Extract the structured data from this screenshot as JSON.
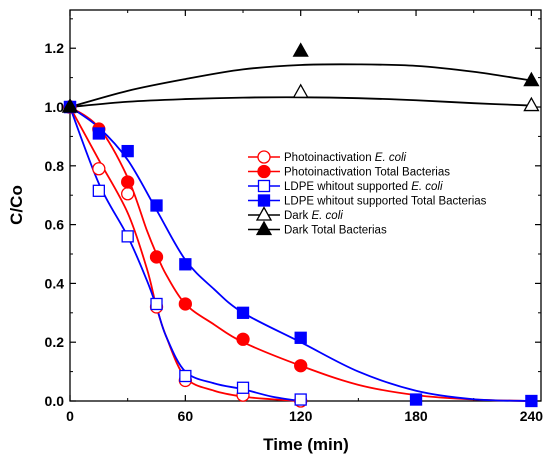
{
  "chart_data": {
    "type": "scatter",
    "xlabel": "Time (min)",
    "ylabel": "C/Co",
    "xlim": [
      0,
      245
    ],
    "ylim": [
      0,
      1.33
    ],
    "x_ticks": [
      0,
      60,
      120,
      180,
      240
    ],
    "y_ticks": [
      0.0,
      0.2,
      0.4,
      0.6,
      0.8,
      1.0,
      1.2
    ],
    "x_tick_labels": [
      "0",
      "60",
      "120",
      "180",
      "240"
    ],
    "y_tick_labels": [
      "0.0",
      "0.2",
      "0.4",
      "0.6",
      "0.8",
      "1.0",
      "1.2"
    ],
    "grid": false,
    "legend_position": "center-right",
    "colors": {
      "red": "#ff0000",
      "blue": "#0000ff",
      "black": "#000000"
    },
    "series": [
      {
        "name": "Photoinactivation E. coli",
        "legend_parts": [
          {
            "text": "Photoinactivation ",
            "italic": false
          },
          {
            "text": "E. coli",
            "italic": true
          }
        ],
        "color": "#ff0000",
        "marker": "circle",
        "filled": false,
        "x": [
          0,
          15,
          30,
          45,
          60,
          90,
          120
        ],
        "y": [
          1.0,
          0.79,
          0.705,
          0.32,
          0.07,
          0.02,
          0.0
        ]
      },
      {
        "name": "Photoinactivation Total Bacterias",
        "legend_parts": [
          {
            "text": "Photoinactivation  Total Bacterias",
            "italic": false
          }
        ],
        "color": "#ff0000",
        "marker": "circle",
        "filled": true,
        "x": [
          0,
          15,
          30,
          45,
          60,
          90,
          120
        ],
        "y": [
          1.0,
          0.925,
          0.745,
          0.49,
          0.33,
          0.21,
          0.12
        ]
      },
      {
        "name": "LDPE whitout supported E. coli",
        "legend_parts": [
          {
            "text": "LDPE whitout supported ",
            "italic": false
          },
          {
            "text": "E. coli",
            "italic": true
          }
        ],
        "color": "#0000ff",
        "marker": "square",
        "filled": false,
        "x": [
          0,
          15,
          30,
          45,
          60,
          90,
          120
        ],
        "y": [
          1.0,
          0.715,
          0.56,
          0.33,
          0.085,
          0.045,
          0.005
        ]
      },
      {
        "name": "LDPE whitout supported Total Bacterias",
        "legend_parts": [
          {
            "text": "LDPE whitout supported Total Bacterias",
            "italic": false
          }
        ],
        "color": "#0000ff",
        "marker": "square",
        "filled": true,
        "x": [
          0,
          15,
          30,
          45,
          60,
          90,
          120,
          180,
          240
        ],
        "y": [
          1.0,
          0.91,
          0.85,
          0.665,
          0.465,
          0.3,
          0.215,
          0.005,
          0.0
        ]
      },
      {
        "name": "Dark E. coli",
        "legend_parts": [
          {
            "text": "Dark ",
            "italic": false
          },
          {
            "text": "E. coli",
            "italic": true
          }
        ],
        "color": "#000000",
        "marker": "triangle",
        "filled": false,
        "x": [
          0,
          120,
          240
        ],
        "y": [
          1.0,
          1.05,
          1.005
        ]
      },
      {
        "name": "Dark Total Bacterias",
        "legend_parts": [
          {
            "text": "Dark Total Bacterias",
            "italic": false
          }
        ],
        "color": "#000000",
        "marker": "triangle",
        "filled": true,
        "x": [
          0,
          120,
          240
        ],
        "y": [
          1.0,
          1.19,
          1.09
        ]
      }
    ],
    "fit_curves": [
      {
        "series": "Photoinactivation E. coli",
        "color": "#ff0000",
        "x": [
          0,
          15,
          30,
          40,
          45,
          50,
          60,
          75,
          90,
          105,
          120
        ],
        "y": [
          1.0,
          0.82,
          0.64,
          0.45,
          0.32,
          0.22,
          0.08,
          0.035,
          0.015,
          0.006,
          0.0
        ]
      },
      {
        "series": "Photoinactivation Total Bacterias",
        "color": "#ff0000",
        "x": [
          0,
          15,
          30,
          40,
          45,
          50,
          60,
          75,
          90,
          120,
          150,
          180,
          210,
          240
        ],
        "y": [
          1.0,
          0.93,
          0.76,
          0.58,
          0.5,
          0.43,
          0.33,
          0.26,
          0.2,
          0.12,
          0.055,
          0.02,
          0.005,
          0.0
        ]
      },
      {
        "series": "LDPE whitout supported E. coli",
        "color": "#0000ff",
        "x": [
          0,
          15,
          30,
          40,
          45,
          50,
          60,
          75,
          90,
          105,
          120
        ],
        "y": [
          1.0,
          0.74,
          0.56,
          0.41,
          0.32,
          0.22,
          0.1,
          0.06,
          0.04,
          0.015,
          0.0
        ]
      },
      {
        "series": "LDPE whitout supported Total Bacterias",
        "color": "#0000ff",
        "x": [
          0,
          15,
          30,
          45,
          60,
          75,
          90,
          120,
          150,
          180,
          210,
          240
        ],
        "y": [
          1.0,
          0.93,
          0.82,
          0.65,
          0.48,
          0.38,
          0.3,
          0.2,
          0.1,
          0.035,
          0.006,
          0.0
        ]
      },
      {
        "series": "Dark E. coli",
        "color": "#000000",
        "x": [
          0,
          30,
          60,
          90,
          120,
          150,
          180,
          210,
          240
        ],
        "y": [
          1.0,
          1.018,
          1.027,
          1.032,
          1.033,
          1.03,
          1.023,
          1.013,
          1.005
        ]
      },
      {
        "series": "Dark Total Bacterias",
        "color": "#000000",
        "x": [
          0,
          30,
          60,
          90,
          120,
          150,
          180,
          210,
          240
        ],
        "y": [
          1.0,
          1.055,
          1.095,
          1.128,
          1.143,
          1.145,
          1.14,
          1.12,
          1.09
        ]
      }
    ]
  }
}
